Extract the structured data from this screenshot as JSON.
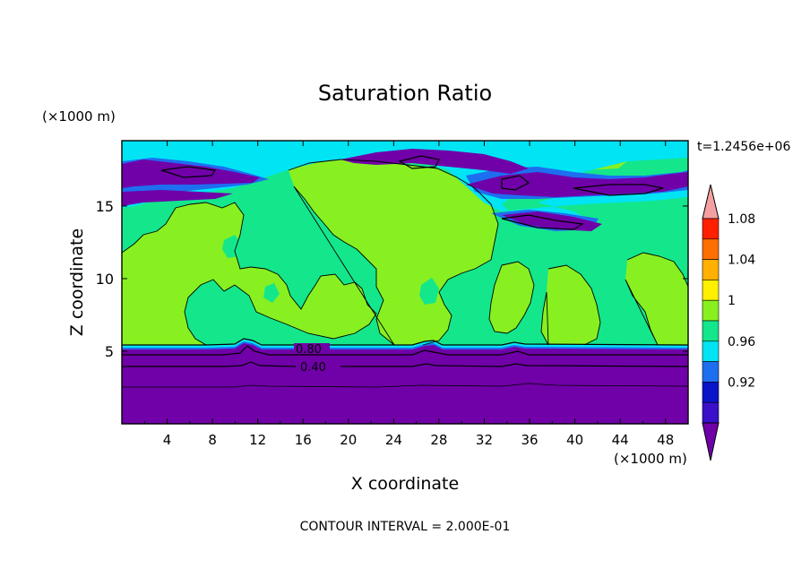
{
  "chart_data": {
    "type": "heatmap",
    "title": "Saturation Ratio",
    "xlabel": "X coordinate",
    "ylabel": "Z coordinate",
    "x_unit": "(×1000 m)",
    "y_unit": "(×1000 m)",
    "time_label": "t=1.2456e+06",
    "footer": "CONTOUR INTERVAL = 2.000E-01",
    "xlim": [
      0,
      50
    ],
    "ylim": [
      0,
      19.5
    ],
    "x_ticks": [
      "4",
      "8",
      "12",
      "16",
      "20",
      "24",
      "28",
      "32",
      "36",
      "40",
      "44",
      "48"
    ],
    "y_ticks": [
      "5",
      "10",
      "15"
    ],
    "colorbar": {
      "labels": [
        "0.92",
        "0.96",
        "1",
        "1.04",
        "1.08"
      ],
      "colors": [
        "#7000a8",
        "#3a10c8",
        "#0a14c8",
        "#1e6ef0",
        "#00e4f4",
        "#14e68c",
        "#88f020",
        "#fff000",
        "#ffb000",
        "#ff6e00",
        "#ff2000",
        "#f5a0a0"
      ]
    },
    "contour_labels": [
      "0.80",
      "0.40"
    ],
    "regions": [
      {
        "value": "<0.90",
        "z_range": [
          0,
          5.3
        ]
      },
      {
        "value": "1.00-1.02",
        "z_range": [
          5.5,
          16
        ]
      },
      {
        "value": "0.98-1.00",
        "z_range": [
          5.5,
          19.5
        ]
      },
      {
        "value": "<0.90",
        "z_range": [
          14.5,
          19.5
        ]
      }
    ]
  }
}
